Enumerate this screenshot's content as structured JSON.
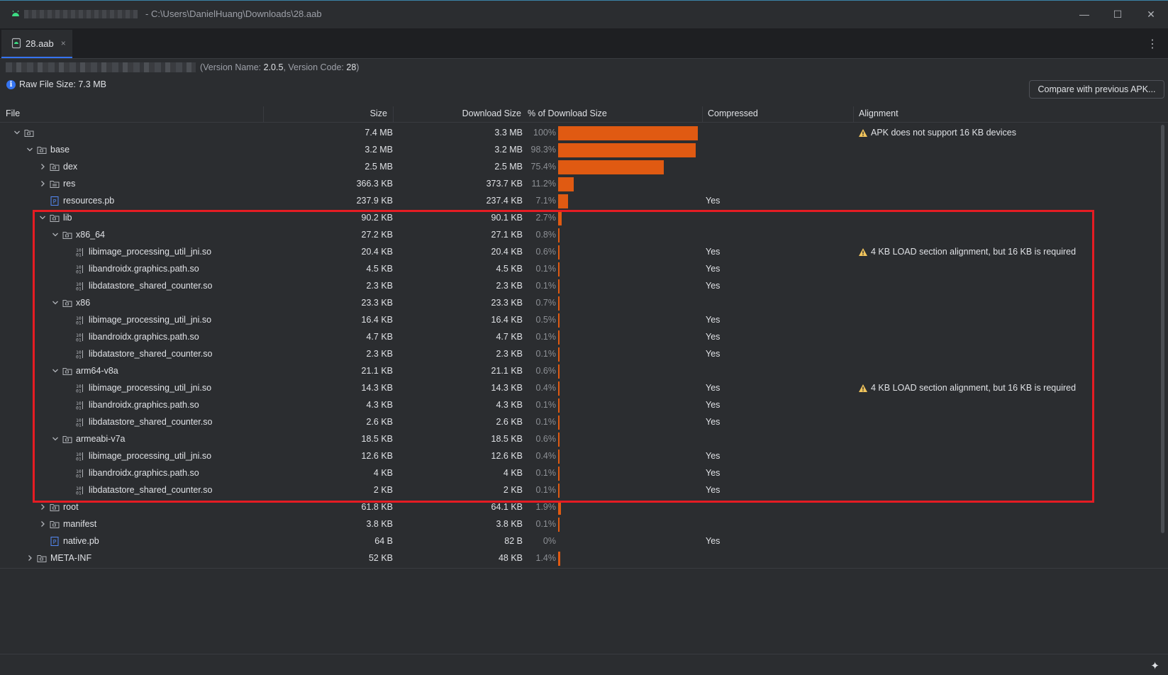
{
  "window": {
    "title": "- C:\\Users\\DanielHuang\\Downloads\\28.aab",
    "minimize": "—",
    "maximize": "☐",
    "close": "✕"
  },
  "tab": {
    "label": "28.aab",
    "close": "×",
    "more": "⋮"
  },
  "info": {
    "version_prefix": "(Version Name: ",
    "version_name": "2.0.5",
    "version_mid": ", Version Code: ",
    "version_code": "28",
    "version_suffix": ")",
    "raw_file_size": "Raw File Size: 7.3 MB",
    "compare_button": "Compare with previous APK..."
  },
  "columns": {
    "file": "File",
    "size": "Size",
    "download_size": "Download Size",
    "percent": "% of Download Size",
    "compressed": "Compressed",
    "alignment": "Alignment"
  },
  "colors": {
    "bar": "#e05a12",
    "highlight": "#e51c23",
    "warning": "#f2c55c",
    "accent": "#3574f0"
  },
  "rows": [
    {
      "level": 0,
      "arrow": "down",
      "icon": "folder",
      "name": "",
      "size": "7.4 MB",
      "dl": "3.3 MB",
      "pct": "100%",
      "frac": 1.0,
      "compressed": "",
      "alignment": "APK does not support 16 KB devices",
      "warn": true
    },
    {
      "level": 1,
      "arrow": "down",
      "icon": "folder",
      "name": "base",
      "size": "3.2 MB",
      "dl": "3.2 MB",
      "pct": "98.3%",
      "frac": 0.983,
      "compressed": "",
      "alignment": "",
      "warn": false
    },
    {
      "level": 2,
      "arrow": "right",
      "icon": "folder",
      "name": "dex",
      "size": "2.5 MB",
      "dl": "2.5 MB",
      "pct": "75.4%",
      "frac": 0.754,
      "compressed": "",
      "alignment": "",
      "warn": false
    },
    {
      "level": 2,
      "arrow": "right",
      "icon": "folder-res",
      "name": "res",
      "size": "366.3 KB",
      "dl": "373.7 KB",
      "pct": "11.2%",
      "frac": 0.112,
      "compressed": "",
      "alignment": "",
      "warn": false
    },
    {
      "level": 2,
      "arrow": "none",
      "icon": "pb",
      "name": "resources.pb",
      "size": "237.9 KB",
      "dl": "237.4 KB",
      "pct": "7.1%",
      "frac": 0.071,
      "compressed": "Yes",
      "alignment": "",
      "warn": false
    },
    {
      "level": 2,
      "arrow": "down",
      "icon": "folder",
      "name": "lib",
      "size": "90.2 KB",
      "dl": "90.1 KB",
      "pct": "2.7%",
      "frac": 0.027,
      "compressed": "",
      "alignment": "",
      "warn": false
    },
    {
      "level": 3,
      "arrow": "down",
      "icon": "folder",
      "name": "x86_64",
      "size": "27.2 KB",
      "dl": "27.1 KB",
      "pct": "0.8%",
      "frac": 0.008,
      "compressed": "",
      "alignment": "",
      "warn": false
    },
    {
      "level": 4,
      "arrow": "none",
      "icon": "binary",
      "name": "libimage_processing_util_jni.so",
      "size": "20.4 KB",
      "dl": "20.4 KB",
      "pct": "0.6%",
      "frac": 0.006,
      "compressed": "Yes",
      "alignment": "4 KB LOAD section alignment, but 16 KB is required",
      "warn": true
    },
    {
      "level": 4,
      "arrow": "none",
      "icon": "binary",
      "name": "libandroidx.graphics.path.so",
      "size": "4.5 KB",
      "dl": "4.5 KB",
      "pct": "0.1%",
      "frac": 0.001,
      "compressed": "Yes",
      "alignment": "",
      "warn": false
    },
    {
      "level": 4,
      "arrow": "none",
      "icon": "binary",
      "name": "libdatastore_shared_counter.so",
      "size": "2.3 KB",
      "dl": "2.3 KB",
      "pct": "0.1%",
      "frac": 0.001,
      "compressed": "Yes",
      "alignment": "",
      "warn": false
    },
    {
      "level": 3,
      "arrow": "down",
      "icon": "folder",
      "name": "x86",
      "size": "23.3 KB",
      "dl": "23.3 KB",
      "pct": "0.7%",
      "frac": 0.007,
      "compressed": "",
      "alignment": "",
      "warn": false
    },
    {
      "level": 4,
      "arrow": "none",
      "icon": "binary",
      "name": "libimage_processing_util_jni.so",
      "size": "16.4 KB",
      "dl": "16.4 KB",
      "pct": "0.5%",
      "frac": 0.005,
      "compressed": "Yes",
      "alignment": "",
      "warn": false
    },
    {
      "level": 4,
      "arrow": "none",
      "icon": "binary",
      "name": "libandroidx.graphics.path.so",
      "size": "4.7 KB",
      "dl": "4.7 KB",
      "pct": "0.1%",
      "frac": 0.001,
      "compressed": "Yes",
      "alignment": "",
      "warn": false
    },
    {
      "level": 4,
      "arrow": "none",
      "icon": "binary",
      "name": "libdatastore_shared_counter.so",
      "size": "2.3 KB",
      "dl": "2.3 KB",
      "pct": "0.1%",
      "frac": 0.001,
      "compressed": "Yes",
      "alignment": "",
      "warn": false
    },
    {
      "level": 3,
      "arrow": "down",
      "icon": "folder",
      "name": "arm64-v8a",
      "size": "21.1 KB",
      "dl": "21.1 KB",
      "pct": "0.6%",
      "frac": 0.006,
      "compressed": "",
      "alignment": "",
      "warn": false
    },
    {
      "level": 4,
      "arrow": "none",
      "icon": "binary",
      "name": "libimage_processing_util_jni.so",
      "size": "14.3 KB",
      "dl": "14.3 KB",
      "pct": "0.4%",
      "frac": 0.004,
      "compressed": "Yes",
      "alignment": "4 KB LOAD section alignment, but 16 KB is required",
      "warn": true
    },
    {
      "level": 4,
      "arrow": "none",
      "icon": "binary",
      "name": "libandroidx.graphics.path.so",
      "size": "4.3 KB",
      "dl": "4.3 KB",
      "pct": "0.1%",
      "frac": 0.001,
      "compressed": "Yes",
      "alignment": "",
      "warn": false
    },
    {
      "level": 4,
      "arrow": "none",
      "icon": "binary",
      "name": "libdatastore_shared_counter.so",
      "size": "2.6 KB",
      "dl": "2.6 KB",
      "pct": "0.1%",
      "frac": 0.001,
      "compressed": "Yes",
      "alignment": "",
      "warn": false
    },
    {
      "level": 3,
      "arrow": "down",
      "icon": "folder",
      "name": "armeabi-v7a",
      "size": "18.5 KB",
      "dl": "18.5 KB",
      "pct": "0.6%",
      "frac": 0.006,
      "compressed": "",
      "alignment": "",
      "warn": false
    },
    {
      "level": 4,
      "arrow": "none",
      "icon": "binary",
      "name": "libimage_processing_util_jni.so",
      "size": "12.6 KB",
      "dl": "12.6 KB",
      "pct": "0.4%",
      "frac": 0.004,
      "compressed": "Yes",
      "alignment": "",
      "warn": false
    },
    {
      "level": 4,
      "arrow": "none",
      "icon": "binary",
      "name": "libandroidx.graphics.path.so",
      "size": "4 KB",
      "dl": "4 KB",
      "pct": "0.1%",
      "frac": 0.001,
      "compressed": "Yes",
      "alignment": "",
      "warn": false
    },
    {
      "level": 4,
      "arrow": "none",
      "icon": "binary",
      "name": "libdatastore_shared_counter.so",
      "size": "2 KB",
      "dl": "2 KB",
      "pct": "0.1%",
      "frac": 0.001,
      "compressed": "Yes",
      "alignment": "",
      "warn": false
    },
    {
      "level": 2,
      "arrow": "right",
      "icon": "folder",
      "name": "root",
      "size": "61.8 KB",
      "dl": "64.1 KB",
      "pct": "1.9%",
      "frac": 0.019,
      "compressed": "",
      "alignment": "",
      "warn": false
    },
    {
      "level": 2,
      "arrow": "right",
      "icon": "folder",
      "name": "manifest",
      "size": "3.8 KB",
      "dl": "3.8 KB",
      "pct": "0.1%",
      "frac": 0.001,
      "compressed": "",
      "alignment": "",
      "warn": false
    },
    {
      "level": 2,
      "arrow": "none",
      "icon": "pb",
      "name": "native.pb",
      "size": "64 B",
      "dl": "82 B",
      "pct": "0%",
      "frac": 0.0,
      "compressed": "Yes",
      "alignment": "",
      "warn": false
    },
    {
      "level": 1,
      "arrow": "right",
      "icon": "folder",
      "name": "META-INF",
      "size": "52 KB",
      "dl": "48 KB",
      "pct": "1.4%",
      "frac": 0.014,
      "compressed": "",
      "alignment": "",
      "warn": false
    }
  ]
}
